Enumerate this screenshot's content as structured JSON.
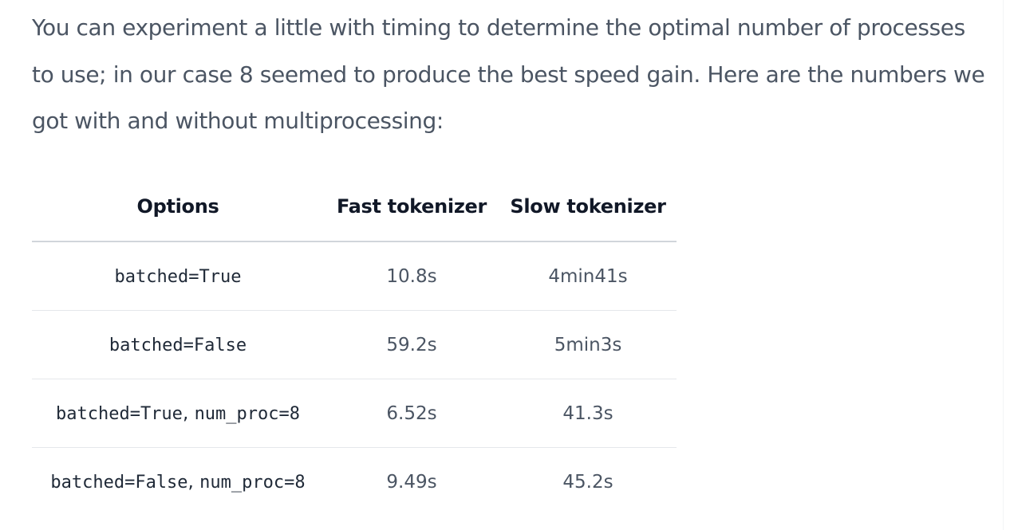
{
  "paragraph": {
    "text": "You can experiment a little with timing to determine the optimal number of processes to use; in our case 8 seemed to produce the best speed gain. Here are the numbers we got with and without multiprocessing:"
  },
  "table": {
    "headers": {
      "options": "Options",
      "fast": "Fast tokenizer",
      "slow": "Slow tokenizer"
    },
    "rows": [
      {
        "option_a": "batched=True",
        "separator": "",
        "option_b": "",
        "fast": "10.8s",
        "slow": "4min41s"
      },
      {
        "option_a": "batched=False",
        "separator": "",
        "option_b": "",
        "fast": "59.2s",
        "slow": "5min3s"
      },
      {
        "option_a": "batched=True",
        "separator": ", ",
        "option_b": "num_proc=8",
        "fast": "6.52s",
        "slow": "41.3s"
      },
      {
        "option_a": "batched=False",
        "separator": ", ",
        "option_b": "num_proc=8",
        "fast": "9.49s",
        "slow": "45.2s"
      }
    ]
  }
}
